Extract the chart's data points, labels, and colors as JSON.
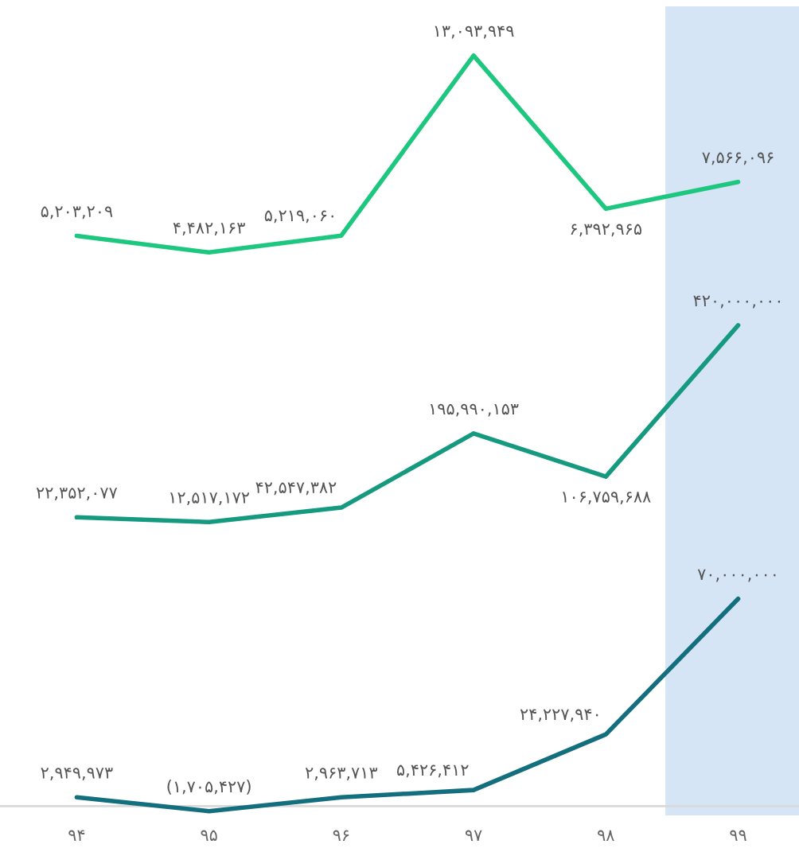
{
  "chart_data": [
    {
      "type": "line",
      "categories": [
        "۹۴",
        "۹۵",
        "۹۶",
        "۹۷",
        "۹۸",
        "۹۹"
      ],
      "tick_labels": false,
      "series": [
        {
          "color": "#1ec77f",
          "values": [
            5203209,
            4482163,
            5219060,
            13093949,
            6392965,
            7566096
          ],
          "value_labels": [
            "۵,۲۰۳,۲۰۹",
            "۴,۴۸۲,۱۶۳",
            "۵,۲۱۹,۰۶۰",
            "۱۳,۰۹۳,۹۴۹",
            "۶,۳۹۲,۹۶۵",
            "۷,۵۶۶,۰۹۶"
          ]
        }
      ],
      "bands": [
        {
          "axis": "x",
          "from": "۹۹",
          "to": "۹۹",
          "color": "#d6e5f5"
        }
      ]
    },
    {
      "type": "line",
      "categories": [
        "۹۴",
        "۹۵",
        "۹۶",
        "۹۷",
        "۹۸",
        "۹۹"
      ],
      "tick_labels": false,
      "series": [
        {
          "color": "#159a80",
          "values": [
            22352077,
            12517172,
            42547382,
            195990153,
            106759688,
            420000000
          ],
          "value_labels": [
            "۲۲,۳۵۲,۰۷۷",
            "۱۲,۵۱۷,۱۷۲",
            "۴۲,۵۴۷,۳۸۲",
            "۱۹۵,۹۹۰,۱۵۳",
            "۱۰۶,۷۵۹,۶۸۸",
            "۴۲۰,۰۰۰,۰۰۰"
          ]
        }
      ],
      "bands": [
        {
          "axis": "x",
          "from": "۹۹",
          "to": "۹۹",
          "color": "#d6e5f5"
        }
      ]
    },
    {
      "type": "line",
      "categories": [
        "۹۴",
        "۹۵",
        "۹۶",
        "۹۷",
        "۹۸",
        "۹۹"
      ],
      "tick_labels": "x",
      "series": [
        {
          "color": "#136f7d",
          "values": [
            2949973,
            -1705427,
            2963713,
            5426412,
            24227940,
            70000000
          ],
          "value_labels": [
            "۲,۹۴۹,۹۷۳",
            "(۱,۷۰۵,۴۲۷)",
            "۲,۹۶۳,۷۱۳",
            "۵,۴۲۶,۴۱۲",
            "۲۴,۲۲۷,۹۴۰",
            "۷۰,۰۰۰,۰۰۰"
          ]
        }
      ],
      "bands": [
        {
          "axis": "x",
          "from": "۹۹",
          "to": "۹۹",
          "color": "#d6e5f5"
        }
      ]
    }
  ]
}
